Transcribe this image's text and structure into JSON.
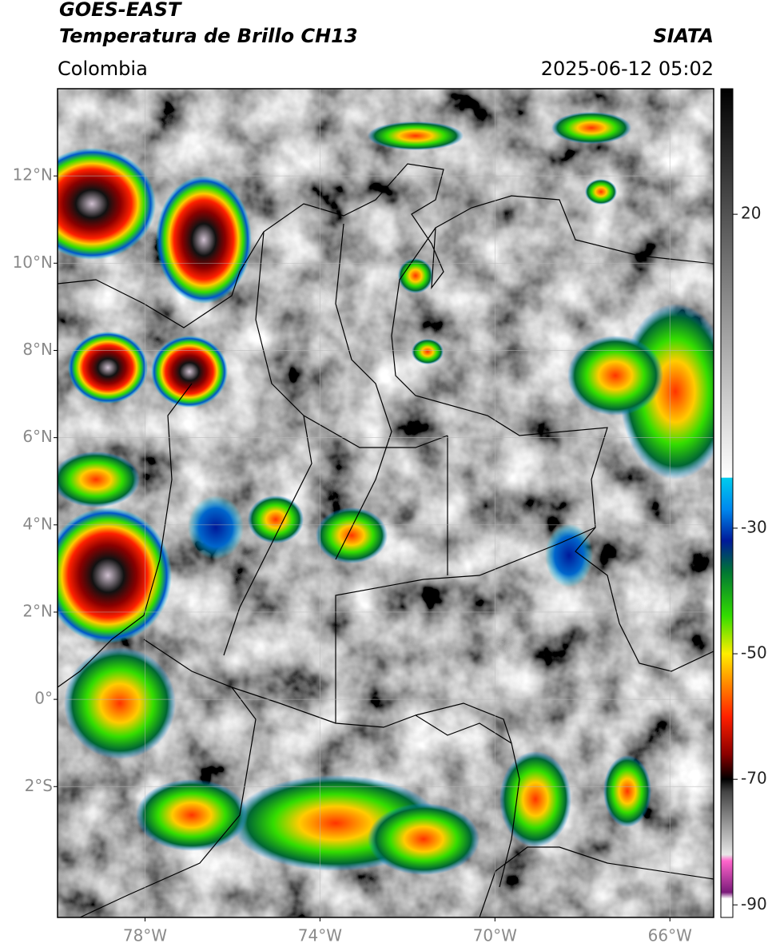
{
  "header": {
    "title": "GOES-EAST",
    "subtitle": "Temperatura de Brillo CH13",
    "source": "SIATA",
    "region": "Colombia",
    "datetime": "2025-06-12 05:02"
  },
  "map": {
    "xlim": [
      -80,
      -65
    ],
    "ylim": [
      -5,
      14
    ],
    "xticks": [
      {
        "value": -78,
        "label": "78°W"
      },
      {
        "value": -74,
        "label": "74°W"
      },
      {
        "value": -70,
        "label": "70°W"
      },
      {
        "value": -66,
        "label": "66°W"
      }
    ],
    "yticks": [
      {
        "value": 12,
        "label": "12°N"
      },
      {
        "value": 10,
        "label": "10°N"
      },
      {
        "value": 8,
        "label": "8°N"
      },
      {
        "value": 6,
        "label": "6°N"
      },
      {
        "value": 4,
        "label": "4°N"
      },
      {
        "value": 2,
        "label": "2°N"
      },
      {
        "value": 0,
        "label": "0°"
      },
      {
        "value": -2,
        "label": "2°S"
      }
    ],
    "grid": true
  },
  "colorbar": {
    "lim": [
      -92,
      40
    ],
    "ticks": [
      20,
      -30,
      -50,
      -70,
      -90
    ],
    "stops": [
      {
        "value": -92,
        "color": "#ffffff"
      },
      {
        "value": -89,
        "color": "#ffffff"
      },
      {
        "value": -88,
        "color": "#7a1a7a"
      },
      {
        "value": -83,
        "color": "#ff66cc"
      },
      {
        "value": -82,
        "color": "#e8e8e8"
      },
      {
        "value": -72,
        "color": "#444444"
      },
      {
        "value": -70,
        "color": "#000000"
      },
      {
        "value": -66,
        "color": "#8b0000"
      },
      {
        "value": -60,
        "color": "#ff2000"
      },
      {
        "value": -54,
        "color": "#ff9900"
      },
      {
        "value": -50,
        "color": "#ffee00"
      },
      {
        "value": -44,
        "color": "#33dd00"
      },
      {
        "value": -37,
        "color": "#007733"
      },
      {
        "value": -32,
        "color": "#001a99"
      },
      {
        "value": -27,
        "color": "#0088ee"
      },
      {
        "value": -22,
        "color": "#00ccee"
      },
      {
        "value": -21.9,
        "color": "#ffffff"
      },
      {
        "value": 40,
        "color": "#000000"
      }
    ]
  }
}
